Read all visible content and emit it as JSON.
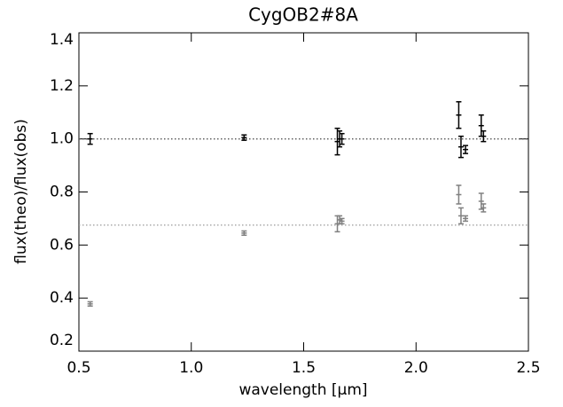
{
  "chart_data": {
    "type": "scatter",
    "title": "CygOB2#8A",
    "x_label": "wavelength [μm]",
    "y_label": "flux(theo)/flux(obs)",
    "xlim": [
      0.5,
      2.5
    ],
    "xticks": [
      0.5,
      {
        "value": 1,
        "label": "1.0"
      },
      1.5,
      {
        "value": 2,
        "label": "2.0"
      },
      2.5
    ],
    "ylim": [
      0.2,
      1.4
    ],
    "yticks": [
      0.2,
      0.4,
      0.6,
      0.8,
      {
        "value": 1,
        "label": "1.0"
      },
      1.2,
      1.4
    ],
    "hlines": [
      {
        "value": 1.0,
        "color": "#555555"
      },
      {
        "value": 0.675,
        "color": "#999999"
      }
    ],
    "series": [
      {
        "color": "#000000",
        "x": [
          0.55,
          1.235,
          1.65,
          1.66,
          1.67,
          2.19,
          2.2,
          2.22,
          2.29,
          2.3
        ],
        "values": [
          1.0,
          1.005,
          0.99,
          1.0,
          1.0,
          1.09,
          0.97,
          0.96,
          1.05,
          1.01
        ],
        "errors": [
          0.02,
          0.01,
          0.05,
          0.03,
          0.02,
          0.05,
          0.04,
          0.015,
          0.04,
          0.02
        ]
      },
      {
        "color": "#808080",
        "x": [
          0.55,
          1.235,
          1.65,
          1.66,
          1.67,
          2.19,
          2.2,
          2.22,
          2.29,
          2.3
        ],
        "values": [
          0.378,
          0.645,
          0.68,
          0.695,
          0.69,
          0.79,
          0.71,
          0.7,
          0.765,
          0.74
        ],
        "errors": [
          0.008,
          0.008,
          0.03,
          0.015,
          0.01,
          0.035,
          0.03,
          0.01,
          0.03,
          0.015
        ]
      }
    ]
  }
}
